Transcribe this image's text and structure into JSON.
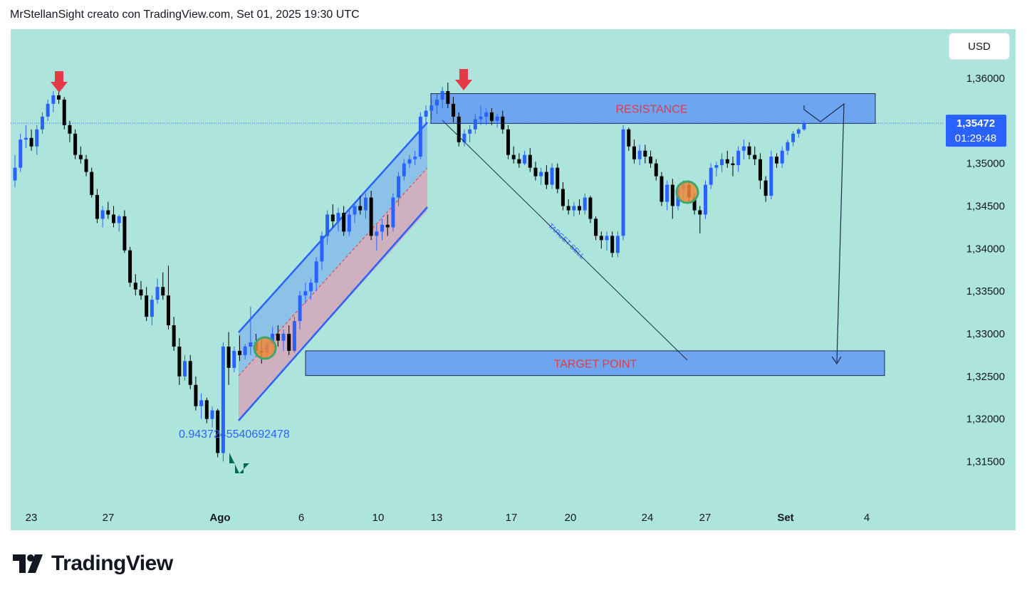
{
  "header": {
    "title": "MrStellanSight creato con TradingView.com, Set 01, 2025 19:30 UTC"
  },
  "logo": {
    "text": "TradingView"
  },
  "chart_data": {
    "type": "candlestick",
    "currency": "USD",
    "y_ticks": [
      "1,36000",
      "1,35500",
      "1,35000",
      "1,34500",
      "1,34000",
      "1,33500",
      "1,33000",
      "1,32500",
      "1,32000",
      "1,31500"
    ],
    "y_tick_values": [
      1.36,
      1.355,
      1.35,
      1.345,
      1.34,
      1.335,
      1.33,
      1.325,
      1.32,
      1.315
    ],
    "ylim": [
      1.31,
      1.3635
    ],
    "x_ticks": [
      "23",
      "27",
      "Ago",
      "6",
      "10",
      "13",
      "17",
      "20",
      "24",
      "27",
      "Set",
      "4"
    ],
    "current_price": {
      "label": "1,35472",
      "value": 1.35472,
      "countdown": "01:29:48"
    },
    "annotations": {
      "resistance": {
        "label": "RESISTANCE",
        "low": 1.3547,
        "high": 1.3582
      },
      "target_point": {
        "label": "TARGET  POINT",
        "low": 1.3251,
        "high": 1.328
      },
      "target_sell": {
        "label": "TARGET  SELL"
      },
      "fib_label": "0.9437245540692478"
    },
    "candles": [
      [
        1.348,
        1.351,
        1.3472,
        1.3495
      ],
      [
        1.3495,
        1.3535,
        1.349,
        1.3528
      ],
      [
        1.3528,
        1.3545,
        1.3518,
        1.353
      ],
      [
        1.353,
        1.354,
        1.3515,
        1.352
      ],
      [
        1.352,
        1.3545,
        1.351,
        1.354
      ],
      [
        1.354,
        1.356,
        1.3535,
        1.3555
      ],
      [
        1.3555,
        1.3575,
        1.355,
        1.357
      ],
      [
        1.357,
        1.3585,
        1.356,
        1.358
      ],
      [
        1.358,
        1.3588,
        1.357,
        1.3575
      ],
      [
        1.3575,
        1.3578,
        1.354,
        1.3545
      ],
      [
        1.3545,
        1.355,
        1.3525,
        1.3535
      ],
      [
        1.3535,
        1.354,
        1.3505,
        1.351
      ],
      [
        1.351,
        1.352,
        1.35,
        1.3505
      ],
      [
        1.3505,
        1.351,
        1.3485,
        1.349
      ],
      [
        1.349,
        1.3495,
        1.346,
        1.3463
      ],
      [
        1.3463,
        1.347,
        1.343,
        1.3435
      ],
      [
        1.3435,
        1.345,
        1.3425,
        1.3445
      ],
      [
        1.3445,
        1.3455,
        1.3435,
        1.344
      ],
      [
        1.344,
        1.345,
        1.3425,
        1.343
      ],
      [
        1.343,
        1.344,
        1.342,
        1.3438
      ],
      [
        1.3438,
        1.3445,
        1.3395,
        1.3398
      ],
      [
        1.3398,
        1.3402,
        1.3355,
        1.336
      ],
      [
        1.336,
        1.337,
        1.3345,
        1.3352
      ],
      [
        1.3352,
        1.3362,
        1.334,
        1.3345
      ],
      [
        1.3345,
        1.3355,
        1.3315,
        1.332
      ],
      [
        1.332,
        1.3345,
        1.331,
        1.334
      ],
      [
        1.334,
        1.3365,
        1.3335,
        1.3355
      ],
      [
        1.3355,
        1.3372,
        1.334,
        1.3345
      ],
      [
        1.3345,
        1.338,
        1.3305,
        1.331
      ],
      [
        1.331,
        1.332,
        1.328,
        1.3285
      ],
      [
        1.3285,
        1.3295,
        1.324,
        1.325
      ],
      [
        1.325,
        1.3275,
        1.3245,
        1.3268
      ],
      [
        1.3268,
        1.3275,
        1.3235,
        1.324
      ],
      [
        1.324,
        1.325,
        1.321,
        1.3215
      ],
      [
        1.3215,
        1.323,
        1.32,
        1.3222
      ],
      [
        1.3222,
        1.3225,
        1.3195,
        1.32
      ],
      [
        1.32,
        1.3215,
        1.319,
        1.321
      ],
      [
        1.321,
        1.3212,
        1.3155,
        1.316
      ],
      [
        1.316,
        1.329,
        1.315,
        1.3285
      ],
      [
        1.3285,
        1.3302,
        1.324,
        1.326
      ],
      [
        1.326,
        1.3285,
        1.3255,
        1.328
      ],
      [
        1.328,
        1.3298,
        1.3268,
        1.3275
      ],
      [
        1.3275,
        1.3288,
        1.327,
        1.3285
      ],
      [
        1.3285,
        1.3332,
        1.3275,
        1.329
      ],
      [
        1.329,
        1.33,
        1.3275,
        1.328
      ],
      [
        1.328,
        1.3295,
        1.3265,
        1.3278
      ],
      [
        1.3278,
        1.3292,
        1.327,
        1.3288
      ],
      [
        1.3288,
        1.3308,
        1.328,
        1.33
      ],
      [
        1.33,
        1.331,
        1.3285,
        1.3292
      ],
      [
        1.3292,
        1.3305,
        1.328,
        1.33
      ],
      [
        1.33,
        1.331,
        1.3275,
        1.328
      ],
      [
        1.328,
        1.332,
        1.3278,
        1.3315
      ],
      [
        1.3315,
        1.335,
        1.3305,
        1.3345
      ],
      [
        1.3345,
        1.336,
        1.3335,
        1.335
      ],
      [
        1.335,
        1.3365,
        1.334,
        1.336
      ],
      [
        1.336,
        1.339,
        1.335,
        1.3385
      ],
      [
        1.3385,
        1.342,
        1.3375,
        1.3415
      ],
      [
        1.3415,
        1.3445,
        1.3405,
        1.344
      ],
      [
        1.344,
        1.3452,
        1.3425,
        1.3432
      ],
      [
        1.3432,
        1.3448,
        1.342,
        1.3442
      ],
      [
        1.3442,
        1.345,
        1.3415,
        1.342
      ],
      [
        1.342,
        1.3445,
        1.3415,
        1.344
      ],
      [
        1.344,
        1.3455,
        1.343,
        1.345
      ],
      [
        1.345,
        1.3462,
        1.344,
        1.3445
      ],
      [
        1.3445,
        1.3465,
        1.3435,
        1.346
      ],
      [
        1.346,
        1.3468,
        1.341,
        1.3415
      ],
      [
        1.3415,
        1.3428,
        1.3398,
        1.342
      ],
      [
        1.342,
        1.3435,
        1.341,
        1.3428
      ],
      [
        1.3428,
        1.344,
        1.3415,
        1.3425
      ],
      [
        1.3425,
        1.3465,
        1.342,
        1.346
      ],
      [
        1.346,
        1.349,
        1.345,
        1.3485
      ],
      [
        1.3485,
        1.3505,
        1.348,
        1.35
      ],
      [
        1.35,
        1.351,
        1.3495,
        1.3505
      ],
      [
        1.3505,
        1.3515,
        1.3498,
        1.3508
      ],
      [
        1.3508,
        1.356,
        1.3505,
        1.3555
      ],
      [
        1.3555,
        1.3568,
        1.3545,
        1.3562
      ],
      [
        1.3562,
        1.3575,
        1.3552,
        1.3568
      ],
      [
        1.3568,
        1.3582,
        1.3558,
        1.3575
      ],
      [
        1.3575,
        1.359,
        1.3565,
        1.3585
      ],
      [
        1.3585,
        1.3595,
        1.3565,
        1.357
      ],
      [
        1.357,
        1.3578,
        1.3548,
        1.3555
      ],
      [
        1.3555,
        1.356,
        1.352,
        1.3525
      ],
      [
        1.3525,
        1.354,
        1.352,
        1.3535
      ],
      [
        1.3535,
        1.3545,
        1.3525,
        1.354
      ],
      [
        1.354,
        1.3558,
        1.3535,
        1.3552
      ],
      [
        1.3552,
        1.3568,
        1.3545,
        1.3555
      ],
      [
        1.3555,
        1.3565,
        1.3545,
        1.356
      ],
      [
        1.356,
        1.3565,
        1.3545,
        1.355
      ],
      [
        1.355,
        1.3558,
        1.3542,
        1.3555
      ],
      [
        1.3555,
        1.3562,
        1.3535,
        1.354
      ],
      [
        1.354,
        1.3545,
        1.3505,
        1.351
      ],
      [
        1.351,
        1.352,
        1.35,
        1.3505
      ],
      [
        1.3505,
        1.3512,
        1.3495,
        1.35
      ],
      [
        1.35,
        1.3515,
        1.3498,
        1.351
      ],
      [
        1.351,
        1.3518,
        1.349,
        1.3495
      ],
      [
        1.3495,
        1.3502,
        1.348,
        1.3485
      ],
      [
        1.3485,
        1.3495,
        1.3475,
        1.349
      ],
      [
        1.349,
        1.3498,
        1.347,
        1.3475
      ],
      [
        1.3475,
        1.35,
        1.347,
        1.3495
      ],
      [
        1.3495,
        1.35,
        1.3465,
        1.347
      ],
      [
        1.347,
        1.3478,
        1.3445,
        1.345
      ],
      [
        1.345,
        1.3458,
        1.344,
        1.3445
      ],
      [
        1.3445,
        1.3455,
        1.3438,
        1.345
      ],
      [
        1.345,
        1.3458,
        1.344,
        1.3445
      ],
      [
        1.3445,
        1.3465,
        1.344,
        1.346
      ],
      [
        1.346,
        1.3462,
        1.343,
        1.3435
      ],
      [
        1.3435,
        1.3438,
        1.341,
        1.3415
      ],
      [
        1.3415,
        1.342,
        1.34,
        1.341
      ],
      [
        1.341,
        1.342,
        1.3398,
        1.3415
      ],
      [
        1.3415,
        1.342,
        1.339,
        1.3395
      ],
      [
        1.3395,
        1.342,
        1.339,
        1.3415
      ],
      [
        1.3415,
        1.3545,
        1.341,
        1.354
      ],
      [
        1.354,
        1.3542,
        1.3515,
        1.352
      ],
      [
        1.352,
        1.3528,
        1.35,
        1.3505
      ],
      [
        1.3505,
        1.3522,
        1.3498,
        1.3515
      ],
      [
        1.3515,
        1.3522,
        1.35,
        1.3508
      ],
      [
        1.3508,
        1.3515,
        1.3495,
        1.35
      ],
      [
        1.35,
        1.3505,
        1.348,
        1.3485
      ],
      [
        1.3485,
        1.349,
        1.345,
        1.3455
      ],
      [
        1.3455,
        1.348,
        1.3445,
        1.3475
      ],
      [
        1.3475,
        1.3482,
        1.3435,
        1.345
      ],
      [
        1.345,
        1.3475,
        1.3445,
        1.347
      ],
      [
        1.347,
        1.348,
        1.346,
        1.3475
      ],
      [
        1.3475,
        1.348,
        1.3455,
        1.346
      ],
      [
        1.346,
        1.3465,
        1.344,
        1.3445
      ],
      [
        1.3445,
        1.345,
        1.3418,
        1.344
      ],
      [
        1.344,
        1.348,
        1.3435,
        1.3475
      ],
      [
        1.3475,
        1.35,
        1.347,
        1.3495
      ],
      [
        1.3495,
        1.3502,
        1.3485,
        1.3498
      ],
      [
        1.3498,
        1.3512,
        1.349,
        1.3505
      ],
      [
        1.3505,
        1.3515,
        1.3495,
        1.35
      ],
      [
        1.35,
        1.3508,
        1.3485,
        1.3498
      ],
      [
        1.3498,
        1.352,
        1.349,
        1.3515
      ],
      [
        1.3515,
        1.3528,
        1.3505,
        1.352
      ],
      [
        1.352,
        1.3525,
        1.3505,
        1.351
      ],
      [
        1.351,
        1.352,
        1.3498,
        1.3505
      ],
      [
        1.3505,
        1.3512,
        1.347,
        1.348
      ],
      [
        1.348,
        1.3485,
        1.3455,
        1.3462
      ],
      [
        1.3462,
        1.3515,
        1.3458,
        1.3508
      ],
      [
        1.3508,
        1.3512,
        1.3495,
        1.35
      ],
      [
        1.35,
        1.352,
        1.3495,
        1.3515
      ],
      [
        1.3515,
        1.3528,
        1.351,
        1.3525
      ],
      [
        1.3525,
        1.3538,
        1.352,
        1.3535
      ],
      [
        1.3535,
        1.3542,
        1.353,
        1.354
      ],
      [
        1.354,
        1.355,
        1.3538,
        1.3547
      ]
    ]
  }
}
